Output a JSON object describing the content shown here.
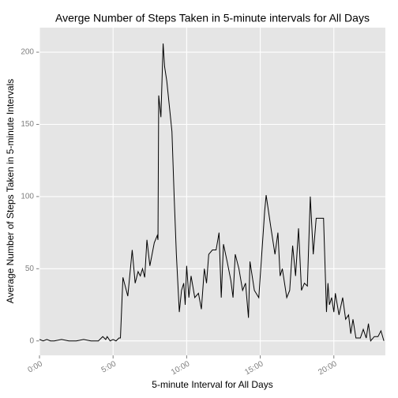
{
  "chart_data": {
    "type": "line",
    "title": "Averge Number of Steps Taken in 5-minute intervals for All Days",
    "x_label": "5-minute Interval for All Days",
    "y_label": "Average Number of Steps Taken in 5-minute Intervals",
    "color": "#000000",
    "grid": true,
    "xlim": [
      0,
      23.5
    ],
    "ylim": [
      -10,
      217
    ],
    "xticks": [
      {
        "value": 0,
        "label": "0:00"
      },
      {
        "value": 5,
        "label": "5:00"
      },
      {
        "value": 10,
        "label": "10:00"
      },
      {
        "value": 15,
        "label": "15:00"
      },
      {
        "value": 20,
        "label": "20:00"
      }
    ],
    "yticks": [
      0,
      50,
      100,
      150,
      200
    ],
    "x": [
      0,
      0.25,
      0.5,
      0.75,
      1,
      1.5,
      2,
      2.5,
      3,
      3.5,
      4,
      4.3,
      4.5,
      4.6,
      4.8,
      5,
      5.2,
      5.4,
      5.5,
      5.67,
      6,
      6.3,
      6.5,
      6.7,
      6.85,
      7,
      7.15,
      7.3,
      7.5,
      7.65,
      7.8,
      8,
      8.05,
      8.1,
      8.25,
      8.4,
      8.5,
      8.65,
      8.8,
      9,
      9.15,
      9.3,
      9.4,
      9.5,
      9.65,
      9.8,
      9.9,
      10,
      10.15,
      10.3,
      10.55,
      10.8,
      11,
      11.2,
      11.35,
      11.5,
      11.75,
      12,
      12.2,
      12.35,
      12.5,
      12.75,
      13,
      13.15,
      13.3,
      13.55,
      13.8,
      14,
      14.2,
      14.3,
      14.6,
      14.9,
      15.3,
      15.4,
      15.7,
      16,
      16.2,
      16.35,
      16.5,
      16.8,
      17,
      17.2,
      17.4,
      17.6,
      17.8,
      18,
      18.2,
      18.4,
      18.6,
      18.8,
      19.3,
      19.5,
      19.6,
      19.7,
      19.85,
      20,
      20.1,
      20.35,
      20.6,
      20.8,
      21,
      21.15,
      21.3,
      21.5,
      21.8,
      22,
      22.2,
      22.35,
      22.5,
      22.75,
      23,
      23.2,
      23.4
    ],
    "values": [
      1,
      0,
      1,
      0,
      0,
      1,
      0,
      0,
      1,
      0,
      0,
      3,
      1,
      3,
      0,
      1,
      0,
      2,
      2,
      44,
      31,
      63,
      40,
      48,
      45,
      50,
      44,
      70,
      52,
      60,
      68,
      73,
      70,
      170,
      155,
      206,
      190,
      180,
      165,
      145,
      100,
      60,
      40,
      20,
      35,
      40,
      25,
      52,
      30,
      45,
      30,
      33,
      22,
      50,
      40,
      60,
      63,
      63,
      75,
      30,
      67,
      55,
      42,
      30,
      60,
      50,
      35,
      40,
      16,
      55,
      35,
      30,
      90,
      101,
      80,
      60,
      75,
      45,
      50,
      30,
      35,
      66,
      45,
      78,
      35,
      40,
      38,
      100,
      60,
      85,
      85,
      20,
      40,
      25,
      30,
      20,
      33,
      18,
      30,
      15,
      18,
      5,
      15,
      2,
      2,
      8,
      2,
      12,
      0,
      3,
      3,
      7,
      0
    ]
  }
}
